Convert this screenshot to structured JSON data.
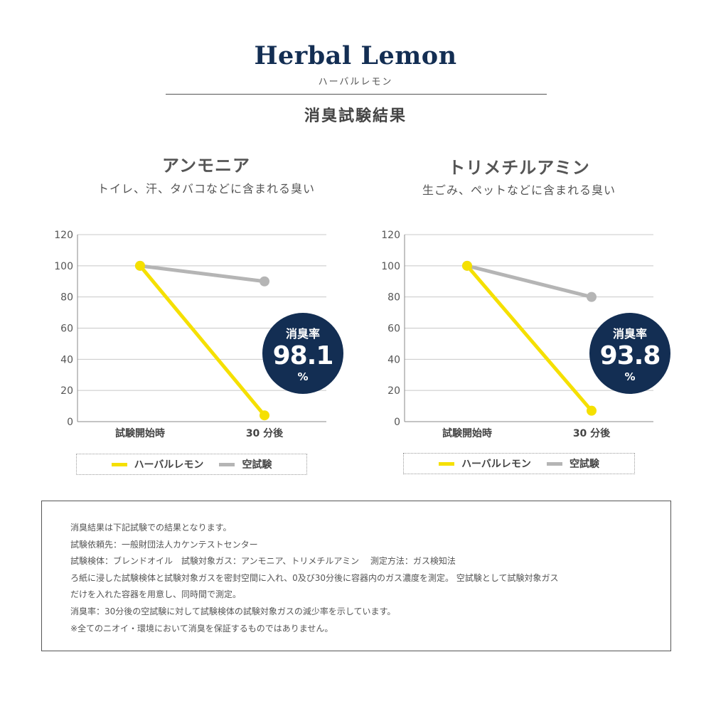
{
  "header": {
    "title": "Herbal Lemon",
    "title_kana": "ハーバルレモン",
    "section_title": "消臭試験結果"
  },
  "colors": {
    "lemon_series": "#f5e000",
    "blank_series": "#b5b5b5",
    "badge": "#132e53",
    "title": "#132e53"
  },
  "chart_data": [
    {
      "type": "line",
      "title": "アンモニア",
      "subtitle": "トイレ、汗、タバコなどに含まれる臭い",
      "categories": [
        "試験開始時",
        "30 分後"
      ],
      "ylim": [
        0,
        120
      ],
      "yticks": [
        "0",
        "20",
        "40",
        "60",
        "80",
        "100",
        "120"
      ],
      "grid": true,
      "legend_placement": "bottom",
      "series": [
        {
          "name": "ハーバルレモン",
          "values": [
            100,
            4
          ],
          "color": "#f5e000"
        },
        {
          "name": "空試験",
          "values": [
            100,
            90
          ],
          "color": "#b5b5b5"
        }
      ],
      "badge": {
        "label": "消臭率",
        "value": "98.1",
        "unit": "%"
      }
    },
    {
      "type": "line",
      "title": "トリメチルアミン",
      "subtitle": "生ごみ、ペットなどに含まれる臭い",
      "categories": [
        "試験開始時",
        "30 分後"
      ],
      "ylim": [
        0,
        120
      ],
      "yticks": [
        "0",
        "20",
        "40",
        "60",
        "80",
        "100",
        "120"
      ],
      "grid": true,
      "legend_placement": "bottom",
      "series": [
        {
          "name": "ハーバルレモン",
          "values": [
            100,
            7
          ],
          "color": "#f5e000"
        },
        {
          "name": "空試験",
          "values": [
            100,
            80
          ],
          "color": "#b5b5b5"
        }
      ],
      "badge": {
        "label": "消臭率",
        "value": "93.8",
        "unit": "%"
      }
    }
  ],
  "notes": [
    "消臭結果は下記試験での結果となります。",
    "試験依頼先：一般財団法人カケンテストセンター",
    "試験検体：ブレンドオイル　試験対象ガス：アンモニア、トリメチルアミン　 測定方法：ガス検知法",
    "ろ紙に浸した試験検体と試験対象ガスを密封空間に入れ、0及び30分後に容器内のガス濃度を測定。 空試験として試験対象ガス",
    "だけを入れた容器を用意し、同時間で測定。",
    "消臭率：30分後の空試験に対して試験検体の試験対象ガスの減少率を示しています。",
    "※全てのニオイ・環境において消臭を保証するものではありません。"
  ]
}
